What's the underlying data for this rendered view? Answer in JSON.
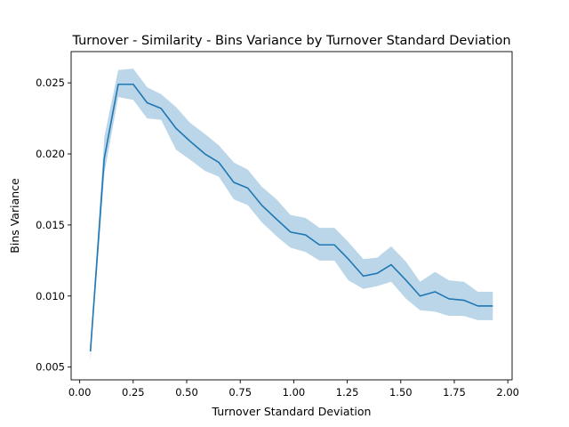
{
  "chart_data": {
    "type": "line",
    "title": "Turnover - Similarity - Bins Variance by Turnover Standard Deviation",
    "xlabel": "Turnover Standard Deviation",
    "ylabel": "Bins Variance",
    "xlim": [
      -0.04,
      2.02
    ],
    "ylim": [
      0.0041,
      0.0272
    ],
    "xticks": [
      0.0,
      0.25,
      0.5,
      0.75,
      1.0,
      1.25,
      1.5,
      1.75,
      2.0
    ],
    "xtick_labels": [
      "0.00",
      "0.25",
      "0.50",
      "0.75",
      "1.00",
      "1.25",
      "1.50",
      "1.75",
      "2.00"
    ],
    "yticks": [
      0.005,
      0.01,
      0.015,
      0.02,
      0.025
    ],
    "ytick_labels": [
      "0.005",
      "0.010",
      "0.015",
      "0.020",
      "0.025"
    ],
    "grid": false,
    "legend": null,
    "series": [
      {
        "color": "#1f77b4",
        "band_color": "#1f77b4",
        "band_opacity": 0.3,
        "x": [
          0.05,
          0.115,
          0.18,
          0.25,
          0.315,
          0.38,
          0.45,
          0.515,
          0.585,
          0.65,
          0.72,
          0.785,
          0.85,
          0.92,
          0.985,
          1.055,
          1.12,
          1.19,
          1.255,
          1.325,
          1.39,
          1.455,
          1.525,
          1.59,
          1.66,
          1.725,
          1.795,
          1.86,
          1.93
        ],
        "y": [
          0.0061,
          0.0197,
          0.0249,
          0.0249,
          0.0236,
          0.0232,
          0.0218,
          0.0209,
          0.02,
          0.0194,
          0.018,
          0.0176,
          0.0164,
          0.0154,
          0.0145,
          0.0143,
          0.0136,
          0.0136,
          0.0126,
          0.0114,
          0.0116,
          0.0122,
          0.0111,
          0.01,
          0.0103,
          0.0098,
          0.0097,
          0.0093,
          0.0093
        ],
        "upper": [
          0.0064,
          0.0212,
          0.0259,
          0.026,
          0.0247,
          0.0242,
          0.0233,
          0.0222,
          0.0214,
          0.0206,
          0.0194,
          0.0189,
          0.0177,
          0.0168,
          0.0157,
          0.0155,
          0.0148,
          0.0148,
          0.0138,
          0.0126,
          0.0127,
          0.0135,
          0.0124,
          0.011,
          0.0117,
          0.0111,
          0.011,
          0.0103,
          0.0103
        ],
        "lower": [
          0.0055,
          0.0186,
          0.024,
          0.0238,
          0.0225,
          0.0224,
          0.0203,
          0.0196,
          0.0188,
          0.0184,
          0.0168,
          0.0164,
          0.0152,
          0.0142,
          0.0134,
          0.0131,
          0.0125,
          0.0125,
          0.0111,
          0.0105,
          0.0107,
          0.011,
          0.0098,
          0.009,
          0.0089,
          0.0086,
          0.0086,
          0.0083,
          0.0083
        ]
      }
    ]
  }
}
